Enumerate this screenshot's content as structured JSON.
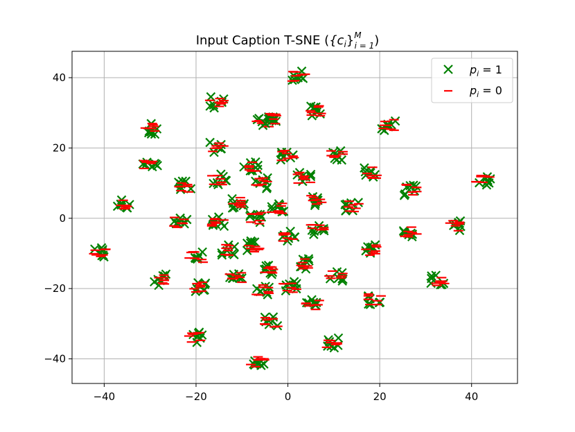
{
  "chart_data": {
    "type": "scatter",
    "title": "Input Caption T-SNE ({c_i}^M_{i=1})",
    "title_main": "Input Caption T-SNE (",
    "title_c": "{c",
    "title_i": "i",
    "title_close": "}",
    "title_sup": "M",
    "title_sub": "i = 1",
    "title_end": ")",
    "xlim": [
      -47,
      50
    ],
    "ylim": [
      -47,
      47.5
    ],
    "xticks": [
      -40,
      -20,
      0,
      20,
      40
    ],
    "yticks": [
      -40,
      -20,
      0,
      20,
      40
    ],
    "xtick_labels": [
      "−40",
      "−20",
      "0",
      "20",
      "40"
    ],
    "ytick_labels": [
      "−40",
      "−20",
      "0",
      "20",
      "40"
    ],
    "grid": true,
    "legend_position": "top-right",
    "colors": {
      "p1": "#008000",
      "p0": "#ff0000",
      "grid": "#b0b0b0"
    },
    "series": [
      {
        "name": "p_i = 1",
        "label_var": "p",
        "label_sub": "i",
        "label_eq": " = 1",
        "marker": "x",
        "color": "#008000",
        "role": "p1"
      },
      {
        "name": "p_i = 0",
        "label_var": "p",
        "label_sub": "i",
        "label_eq": " = 0",
        "marker": "_",
        "color": "#ff0000",
        "role": "p0"
      }
    ],
    "clusters": [
      [
        -41,
        -10
      ],
      [
        -36,
        4
      ],
      [
        -29.5,
        25.5
      ],
      [
        -30,
        15
      ],
      [
        -27.5,
        -17.5
      ],
      [
        -23.5,
        -1
      ],
      [
        -22.5,
        9
      ],
      [
        -20,
        -11
      ],
      [
        -20,
        -34
      ],
      [
        -19,
        -19.5
      ],
      [
        -15.5,
        20
      ],
      [
        -15.5,
        33
      ],
      [
        -15,
        11
      ],
      [
        -15,
        -1
      ],
      [
        -13,
        -9
      ],
      [
        -11.5,
        -17
      ],
      [
        -11,
        4.5
      ],
      [
        -8,
        15
      ],
      [
        -7.5,
        -8
      ],
      [
        -7,
        0
      ],
      [
        -6.5,
        -41
      ],
      [
        -6,
        10
      ],
      [
        -5.5,
        27.5
      ],
      [
        -5.5,
        -20.5
      ],
      [
        -4,
        28.5
      ],
      [
        -3.5,
        -14.5
      ],
      [
        -3.5,
        -29.5
      ],
      [
        -2,
        3
      ],
      [
        0,
        18
      ],
      [
        0,
        -5
      ],
      [
        0.5,
        -19.5
      ],
      [
        2.5,
        40.5
      ],
      [
        3,
        -13
      ],
      [
        3.5,
        11.5
      ],
      [
        5.5,
        -24.5
      ],
      [
        6,
        5
      ],
      [
        6.5,
        -3
      ],
      [
        6.5,
        30.5
      ],
      [
        9.5,
        -35.5
      ],
      [
        10.5,
        18
      ],
      [
        10.5,
        -16.5
      ],
      [
        14,
        3.5
      ],
      [
        18,
        13
      ],
      [
        18,
        -9
      ],
      [
        19,
        -23
      ],
      [
        22,
        26.5
      ],
      [
        26.5,
        8
      ],
      [
        26.5,
        -4
      ],
      [
        32.5,
        -17.5
      ],
      [
        36.5,
        -2
      ],
      [
        42.5,
        11
      ]
    ],
    "cluster_spread": 1.6
  }
}
